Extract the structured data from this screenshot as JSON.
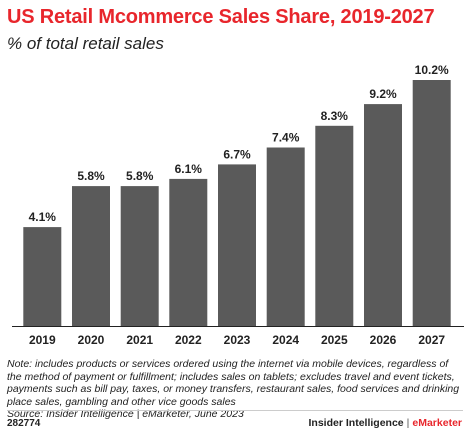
{
  "chart_data": {
    "type": "bar",
    "title": "US Retail Mcommerce Sales Share, 2019-2027",
    "subtitle": "% of total retail sales",
    "categories": [
      "2019",
      "2020",
      "2021",
      "2022",
      "2023",
      "2024",
      "2025",
      "2026",
      "2027"
    ],
    "values": [
      4.1,
      5.8,
      5.8,
      6.1,
      6.7,
      7.4,
      8.3,
      9.2,
      10.2
    ],
    "data_labels": [
      "4.1%",
      "5.8%",
      "5.8%",
      "6.1%",
      "6.7%",
      "7.4%",
      "8.3%",
      "9.2%",
      "10.2%"
    ],
    "ylim": [
      0,
      10.2
    ],
    "grid": false,
    "legend": "none",
    "bar_color": "#5a5a5a"
  },
  "note": "Note: includes products or services ordered using the internet via mobile devices, regardless of the method of payment or fulfillment; includes sales on tablets; excludes travel and event tickets, payments such as bill pay, taxes, or money transfers, restaurant sales, food services and drinking place sales, gambling and other vice goods sales",
  "source": "Source: Insider Intelligence | eMarketer, June 2023",
  "footer": {
    "chart_id": "282774",
    "brand_primary": "Insider Intelligence",
    "brand_separator": "|",
    "brand_secondary": "eMarketer"
  },
  "colors": {
    "accent": "#e8262c",
    "bar": "#5a5a5a",
    "text": "#222222"
  }
}
